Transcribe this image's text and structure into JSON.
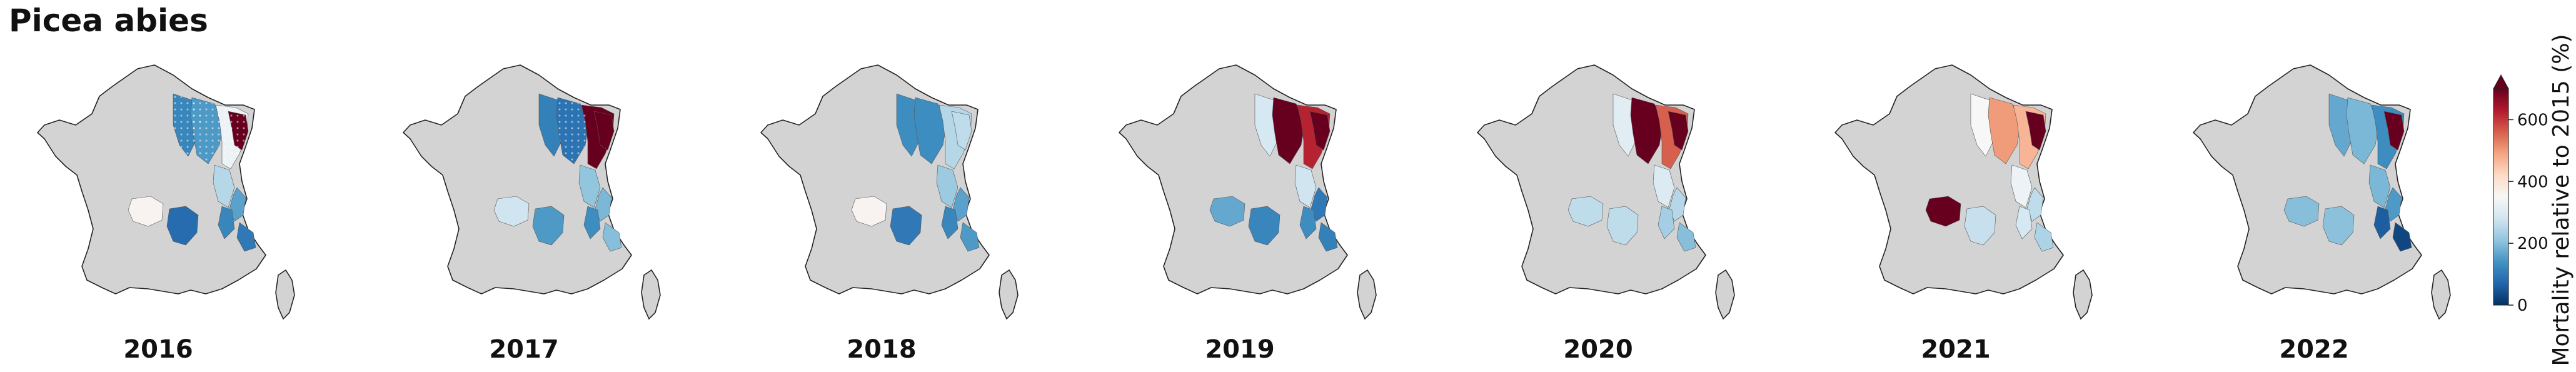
{
  "title": "Picea abies",
  "colorbar": {
    "label": "Mortality relative to 2015 (%)",
    "ticks": [
      0,
      200,
      400,
      600
    ],
    "range": [
      0,
      700
    ],
    "extend": "max",
    "colormap": "RdBu_r",
    "colors": [
      "#053061",
      "#2166ac",
      "#4393c3",
      "#92c5de",
      "#d1e5f0",
      "#f7f7f7",
      "#fddbc7",
      "#f4a582",
      "#d6604d",
      "#b2182b",
      "#67001f"
    ]
  },
  "map_background": "#d3d3d3",
  "years": [
    {
      "label": "2016",
      "values": {
        "northeast_core": 150,
        "northeast_edge": 330,
        "vosges_upper": 720,
        "jura": 250,
        "alps_north": 160,
        "alps_mid": 120,
        "alps_south": 100,
        "massif_central_west": 360,
        "massif_central_east": 80,
        "ne_plain": 120
      }
    },
    {
      "label": "2017",
      "values": {
        "northeast_core": 90,
        "northeast_edge": 720,
        "vosges_upper": 720,
        "jura": 210,
        "alps_north": 190,
        "alps_mid": 130,
        "alps_south": 200,
        "massif_central_west": 280,
        "massif_central_east": 150,
        "ne_plain": 110
      }
    },
    {
      "label": "2018",
      "values": {
        "northeast_core": 130,
        "northeast_edge": 250,
        "vosges_upper": 260,
        "jura": 220,
        "alps_north": 160,
        "alps_mid": 120,
        "alps_south": 150,
        "massif_central_west": 360,
        "massif_central_east": 100,
        "ne_plain": 130
      }
    },
    {
      "label": "2019",
      "values": {
        "northeast_core": 720,
        "northeast_edge": 620,
        "vosges_upper": 720,
        "jura": 280,
        "alps_north": 100,
        "alps_mid": 130,
        "alps_south": 110,
        "massif_central_west": 170,
        "massif_central_east": 120,
        "ne_plain": 290
      }
    },
    {
      "label": "2020",
      "values": {
        "northeast_core": 720,
        "northeast_edge": 560,
        "vosges_upper": 720,
        "jura": 300,
        "alps_north": 250,
        "alps_mid": 230,
        "alps_south": 200,
        "massif_central_west": 260,
        "massif_central_east": 260,
        "ne_plain": 310
      }
    },
    {
      "label": "2021",
      "values": {
        "northeast_core": 500,
        "northeast_edge": 470,
        "vosges_upper": 720,
        "jura": 330,
        "alps_north": 260,
        "alps_mid": 290,
        "alps_south": 240,
        "massif_central_west": 720,
        "massif_central_east": 270,
        "ne_plain": 350
      }
    },
    {
      "label": "2022",
      "values": {
        "northeast_core": 190,
        "northeast_edge": 130,
        "vosges_upper": 720,
        "jura": 190,
        "alps_north": 150,
        "alps_mid": 60,
        "alps_south": 30,
        "massif_central_west": 200,
        "massif_central_east": 205,
        "ne_plain": 170
      }
    }
  ]
}
